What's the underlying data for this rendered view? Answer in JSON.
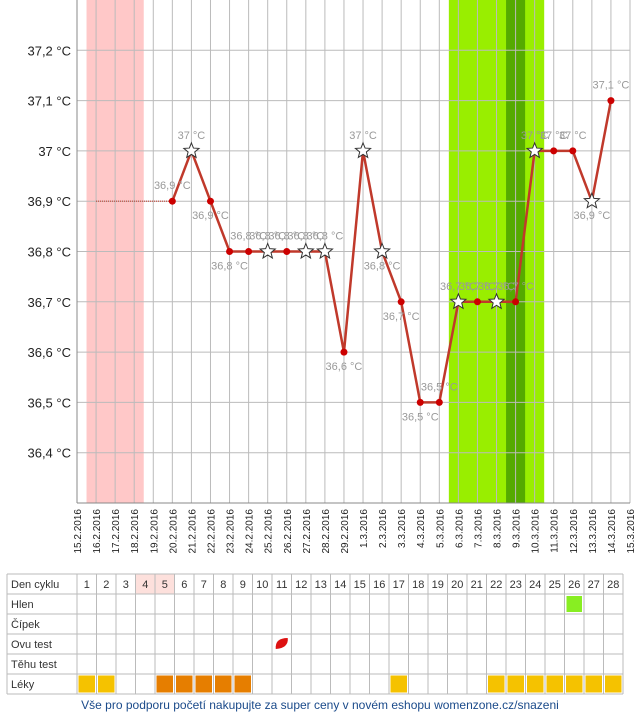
{
  "chart_data": {
    "type": "line",
    "y_ticks": [
      "37,2 °C",
      "37,1 °C",
      "37 °C",
      "36,9 °C",
      "36,8 °C",
      "36,7 °C",
      "36,6 °C",
      "36,5 °C",
      "36,4 °C"
    ],
    "y_tick_values": [
      37.2,
      37.1,
      37.0,
      36.9,
      36.8,
      36.7,
      36.6,
      36.5,
      36.4
    ],
    "ylim": [
      36.3,
      37.3
    ],
    "dates": [
      "15.2.2016",
      "16.2.2016",
      "17.2.2016",
      "18.2.2016",
      "19.2.2016",
      "20.2.2016",
      "21.2.2016",
      "22.2.2016",
      "23.2.2016",
      "24.2.2016",
      "25.2.2016",
      "26.2.2016",
      "27.2.2016",
      "28.2.2016",
      "29.2.2016",
      "1.3.2016",
      "2.3.2016",
      "3.3.2016",
      "4.3.2016",
      "5.3.2016",
      "6.3.2016",
      "7.3.2016",
      "8.3.2016",
      "9.3.2016",
      "10.3.2016",
      "11.3.2016",
      "12.3.2016",
      "13.3.2016",
      "14.3.2016",
      "15.3.2016"
    ],
    "series": [
      {
        "values": [
          null,
          null,
          null,
          null,
          null,
          36.9,
          37.0,
          36.9,
          36.8,
          36.8,
          36.8,
          36.8,
          36.8,
          36.8,
          36.6,
          37.0,
          36.8,
          36.7,
          36.5,
          36.5,
          36.7,
          36.7,
          36.7,
          36.7,
          37.0,
          37.0,
          37.0,
          36.9,
          37.1,
          null
        ],
        "labels": [
          "",
          "",
          "",
          "",
          "",
          "36,9 °C",
          "37 °C",
          "36,9 °C",
          "36,8 °C",
          "36,8 °C",
          "36,8 °C",
          "36,8 °C",
          "36,8 °C",
          "36,8 °C",
          "36,6 °C",
          "37 °C",
          "36,8 °C",
          "36,7 °C",
          "36,5 °C",
          "36,5 °C",
          "36,7 °C",
          "36,7 °C",
          "36,7 °C",
          "36,7 °C",
          "37 °C",
          "37 °C",
          "37 °C",
          "36,9 °C",
          "37,1 °C",
          ""
        ],
        "stars": [
          false,
          false,
          false,
          false,
          false,
          false,
          true,
          false,
          false,
          false,
          true,
          false,
          true,
          true,
          false,
          true,
          true,
          false,
          false,
          false,
          true,
          false,
          true,
          false,
          true,
          false,
          false,
          true,
          false,
          false
        ]
      }
    ],
    "dotted_line_from_date": "16.2.2016",
    "dotted_line_to_date": "20.2.2016",
    "dotted_line_value": 36.9,
    "bands": [
      {
        "from": "16.2.2016",
        "to": "18.2.2016",
        "color": "#ffc8c8"
      },
      {
        "from": "6.3.2016",
        "to": "10.3.2016",
        "color": "#99ee00"
      },
      {
        "from": "9.3.2016",
        "to": "9.3.2016",
        "color": "#55aa00"
      }
    ],
    "colors": {
      "line": "#c0392b",
      "point": "#cc0000",
      "grid": "#bbbbbb",
      "label": "#999999"
    }
  },
  "table": {
    "row_labels": [
      "Den cyklu",
      "Hlen",
      "Čípek",
      "Ovu test",
      "Těhu test",
      "Léky"
    ],
    "cycle_days": [
      "1",
      "2",
      "3",
      "4",
      "5",
      "6",
      "7",
      "8",
      "9",
      "10",
      "11",
      "12",
      "13",
      "14",
      "15",
      "16",
      "17",
      "18",
      "19",
      "20",
      "21",
      "22",
      "23",
      "24",
      "25",
      "26",
      "27",
      "28"
    ],
    "pink_days": [
      4,
      5
    ],
    "hlen_marks": [
      26
    ],
    "ovu_marks": [
      11
    ],
    "leky_marks": [
      {
        "day": 1,
        "color": "#f5c200"
      },
      {
        "day": 2,
        "color": "#f5c200"
      },
      {
        "day": 5,
        "color": "#e67e00"
      },
      {
        "day": 6,
        "color": "#e67e00"
      },
      {
        "day": 7,
        "color": "#e67e00"
      },
      {
        "day": 8,
        "color": "#e67e00"
      },
      {
        "day": 9,
        "color": "#e67e00"
      },
      {
        "day": 17,
        "color": "#f5c200"
      },
      {
        "day": 22,
        "color": "#f5c200"
      },
      {
        "day": 23,
        "color": "#f5c200"
      },
      {
        "day": 24,
        "color": "#f5c200"
      },
      {
        "day": 25,
        "color": "#f5c200"
      },
      {
        "day": 26,
        "color": "#f5c200"
      },
      {
        "day": 27,
        "color": "#f5c200"
      },
      {
        "day": 28,
        "color": "#f5c200"
      }
    ],
    "colors": {
      "hlen": "#88ee22",
      "ovu": "#dd1111",
      "pink": "#fde0dc"
    }
  },
  "footer": {
    "text": "Vše pro podporu početí nakupujte za super ceny v novém eshopu womenzone.cz/snazeni"
  }
}
